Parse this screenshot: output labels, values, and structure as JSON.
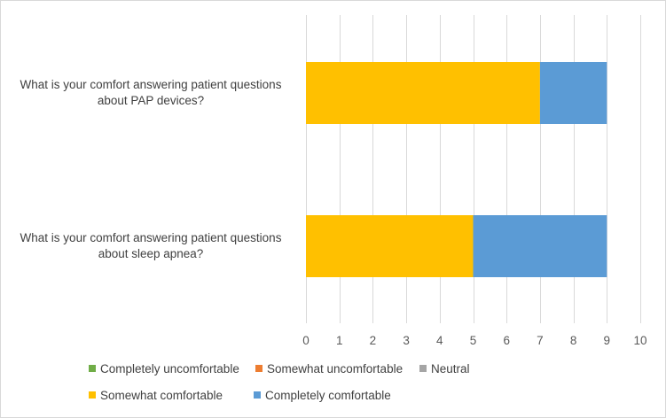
{
  "chart_data": {
    "type": "bar",
    "orientation": "horizontal",
    "stacked": true,
    "categories": [
      "What is your comfort answering patient questions about PAP devices?",
      "What is your comfort answering patient questions about sleep apnea?"
    ],
    "series": [
      {
        "name": "Completely uncomfortable",
        "color": "#70ad47",
        "values": [
          0,
          0
        ]
      },
      {
        "name": "Somewhat uncomfortable",
        "color": "#ed7d31",
        "values": [
          0,
          0
        ]
      },
      {
        "name": "Neutral",
        "color": "#a5a5a5",
        "values": [
          0,
          0
        ]
      },
      {
        "name": "Somewhat comfortable",
        "color": "#ffc000",
        "values": [
          7,
          5
        ]
      },
      {
        "name": "Completely comfortable",
        "color": "#5b9bd5",
        "values": [
          2,
          4
        ]
      }
    ],
    "xlim": [
      0,
      10
    ],
    "xticks": [
      "0",
      "1",
      "2",
      "3",
      "4",
      "5",
      "6",
      "7",
      "8",
      "9",
      "10"
    ],
    "grid": "vertical",
    "legend_position": "bottom",
    "title": "",
    "xlabel": "",
    "ylabel": ""
  }
}
